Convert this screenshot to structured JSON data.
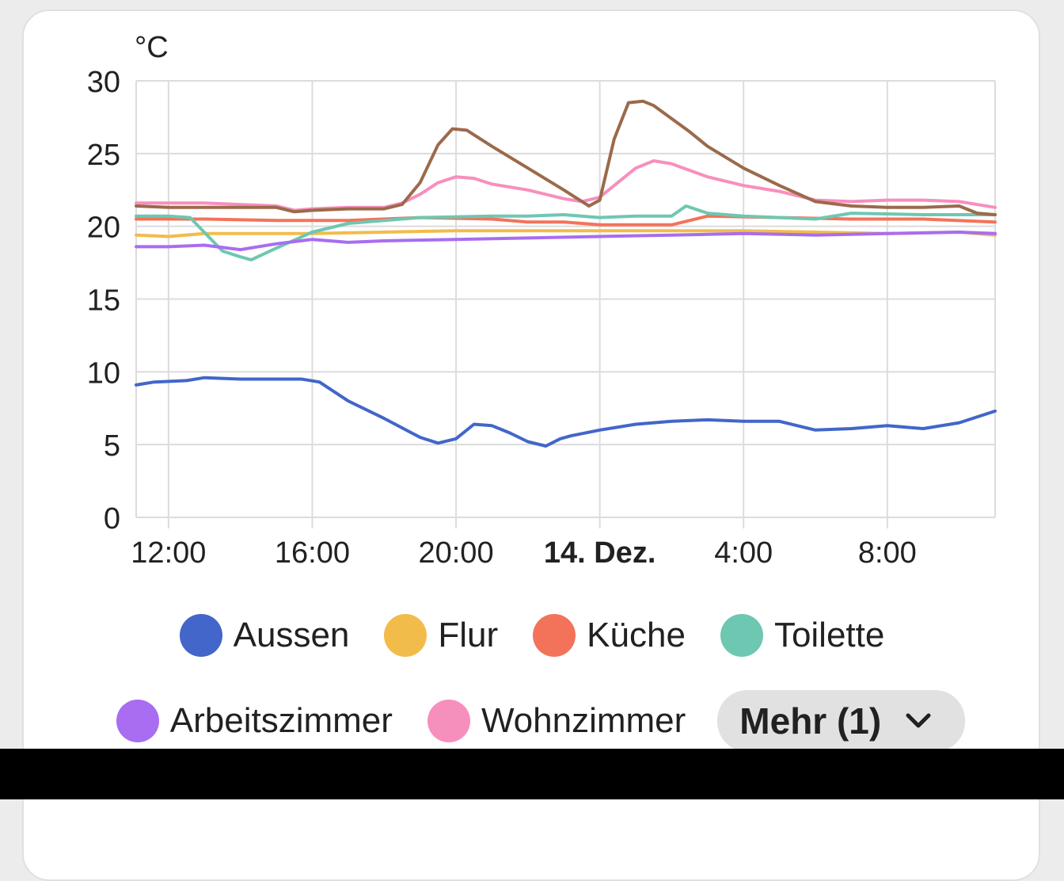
{
  "chart_data": {
    "type": "line",
    "ylabel": "°C",
    "ylim": [
      0,
      30
    ],
    "yticks": [
      "0",
      "5",
      "10",
      "15",
      "20",
      "25",
      "30"
    ],
    "xlim": [
      11.1,
      35.0
    ],
    "xticks": [
      {
        "label": "12:00",
        "x": 12,
        "bold": false
      },
      {
        "label": "16:00",
        "x": 16,
        "bold": false
      },
      {
        "label": "20:00",
        "x": 20,
        "bold": false
      },
      {
        "label": "14. Dez.",
        "x": 24,
        "bold": true
      },
      {
        "label": "4:00",
        "x": 28,
        "bold": false
      },
      {
        "label": "8:00",
        "x": 32,
        "bold": false
      }
    ],
    "grid": true,
    "legend_placement": "bottom",
    "series": [
      {
        "name": "Aussen",
        "color": "#4266c9",
        "x": [
          11.1,
          11.6,
          12.5,
          13.0,
          14.0,
          15.0,
          15.7,
          16.2,
          17.0,
          18.0,
          19.0,
          19.5,
          20.0,
          20.5,
          21.0,
          21.5,
          22.0,
          22.5,
          22.9,
          23.2,
          24.0,
          25.0,
          26.0,
          27.0,
          28.0,
          29.0,
          30.0,
          31.0,
          32.0,
          33.0,
          34.0,
          35.0
        ],
        "y": [
          9.1,
          9.3,
          9.4,
          9.6,
          9.5,
          9.5,
          9.5,
          9.3,
          8.0,
          6.8,
          5.5,
          5.1,
          5.4,
          6.4,
          6.3,
          5.8,
          5.2,
          4.9,
          5.4,
          5.6,
          6.0,
          6.4,
          6.6,
          6.7,
          6.6,
          6.6,
          6.0,
          6.1,
          6.3,
          6.1,
          6.5,
          7.3
        ]
      },
      {
        "name": "Flur",
        "color": "#f2bc4b",
        "x": [
          11.1,
          12.0,
          13.0,
          14.0,
          16.0,
          18.0,
          20.0,
          22.0,
          24.0,
          26.0,
          28.0,
          30.0,
          32.0,
          34.0,
          35.0
        ],
        "y": [
          19.4,
          19.3,
          19.5,
          19.5,
          19.5,
          19.6,
          19.7,
          19.7,
          19.7,
          19.7,
          19.7,
          19.6,
          19.5,
          19.6,
          19.4
        ]
      },
      {
        "name": "Küche",
        "color": "#f3735a",
        "x": [
          11.1,
          13.0,
          15.0,
          17.0,
          19.0,
          21.0,
          22.0,
          23.0,
          24.0,
          25.0,
          26.0,
          27.0,
          29.0,
          31.0,
          33.0,
          35.0
        ],
        "y": [
          20.5,
          20.5,
          20.4,
          20.4,
          20.6,
          20.5,
          20.3,
          20.3,
          20.1,
          20.1,
          20.1,
          20.7,
          20.6,
          20.5,
          20.5,
          20.3
        ]
      },
      {
        "name": "Toilette",
        "color": "#6ec7b1",
        "x": [
          11.1,
          12.0,
          12.6,
          13.5,
          14.0,
          14.3,
          15.0,
          16.0,
          17.0,
          19.0,
          21.0,
          22.0,
          23.0,
          24.0,
          25.0,
          26.0,
          26.4,
          27.0,
          28.0,
          30.0,
          31.0,
          33.0,
          35.0
        ],
        "y": [
          20.7,
          20.7,
          20.6,
          18.3,
          17.9,
          17.7,
          18.5,
          19.6,
          20.2,
          20.6,
          20.7,
          20.7,
          20.8,
          20.6,
          20.7,
          20.7,
          21.4,
          20.9,
          20.7,
          20.5,
          20.9,
          20.8,
          20.8
        ]
      },
      {
        "name": "Arbeitszimmer",
        "color": "#a86df0",
        "x": [
          11.1,
          12.0,
          13.0,
          14.0,
          15.0,
          16.0,
          17.0,
          18.0,
          20.0,
          22.0,
          24.0,
          26.0,
          28.0,
          30.0,
          32.0,
          34.0,
          35.0
        ],
        "y": [
          18.6,
          18.6,
          18.7,
          18.4,
          18.8,
          19.1,
          18.9,
          19.0,
          19.1,
          19.2,
          19.3,
          19.4,
          19.5,
          19.4,
          19.5,
          19.6,
          19.5
        ]
      },
      {
        "name": "Wohnzimmer",
        "color": "#f78fbd",
        "x": [
          11.1,
          12.0,
          13.0,
          14.0,
          15.0,
          15.5,
          16.0,
          17.0,
          18.0,
          18.5,
          19.0,
          19.5,
          20.0,
          20.5,
          21.0,
          22.0,
          23.0,
          23.5,
          24.0,
          25.0,
          25.5,
          26.0,
          27.0,
          28.0,
          29.0,
          30.0,
          31.0,
          32.0,
          33.0,
          34.0,
          35.0
        ],
        "y": [
          21.6,
          21.6,
          21.6,
          21.5,
          21.4,
          21.1,
          21.2,
          21.3,
          21.3,
          21.6,
          22.2,
          23.0,
          23.4,
          23.3,
          22.9,
          22.5,
          21.9,
          21.7,
          22.0,
          24.0,
          24.5,
          24.3,
          23.4,
          22.8,
          22.4,
          21.8,
          21.7,
          21.8,
          21.8,
          21.7,
          21.3
        ]
      },
      {
        "name": "",
        "color": "#9b6a4b",
        "x": [
          11.1,
          12.0,
          13.0,
          14.0,
          15.0,
          15.5,
          16.0,
          17.0,
          18.0,
          18.5,
          19.0,
          19.5,
          19.9,
          20.3,
          21.0,
          22.0,
          23.0,
          23.7,
          24.0,
          24.4,
          24.8,
          25.2,
          25.5,
          26.0,
          26.5,
          27.0,
          28.0,
          29.0,
          30.0,
          31.0,
          32.0,
          33.0,
          34.0,
          34.5,
          35.0
        ],
        "y": [
          21.4,
          21.3,
          21.3,
          21.3,
          21.3,
          21.0,
          21.1,
          21.2,
          21.2,
          21.5,
          23.0,
          25.6,
          26.7,
          26.6,
          25.5,
          24.0,
          22.5,
          21.4,
          21.8,
          26.0,
          28.5,
          28.6,
          28.3,
          27.4,
          26.5,
          25.5,
          24.0,
          22.8,
          21.7,
          21.4,
          21.3,
          21.3,
          21.4,
          20.9,
          20.8
        ]
      }
    ]
  },
  "legend": {
    "row1": [
      {
        "label": "Aussen",
        "color": "#4266c9"
      },
      {
        "label": "Flur",
        "color": "#f2bc4b"
      },
      {
        "label": "Küche",
        "color": "#f3735a"
      },
      {
        "label": "Toilette",
        "color": "#6ec7b1"
      }
    ],
    "row2": [
      {
        "label": "Arbeitszimmer",
        "color": "#a86df0"
      },
      {
        "label": "Wohnzimmer",
        "color": "#f78fbd"
      }
    ],
    "more_label": "Mehr (1)",
    "more_icon": "chevron-down-icon"
  },
  "colors": {
    "grid": "#dcdcdc",
    "text": "#212121",
    "card": "#ffffff",
    "more_bg": "#e1e1e1"
  }
}
